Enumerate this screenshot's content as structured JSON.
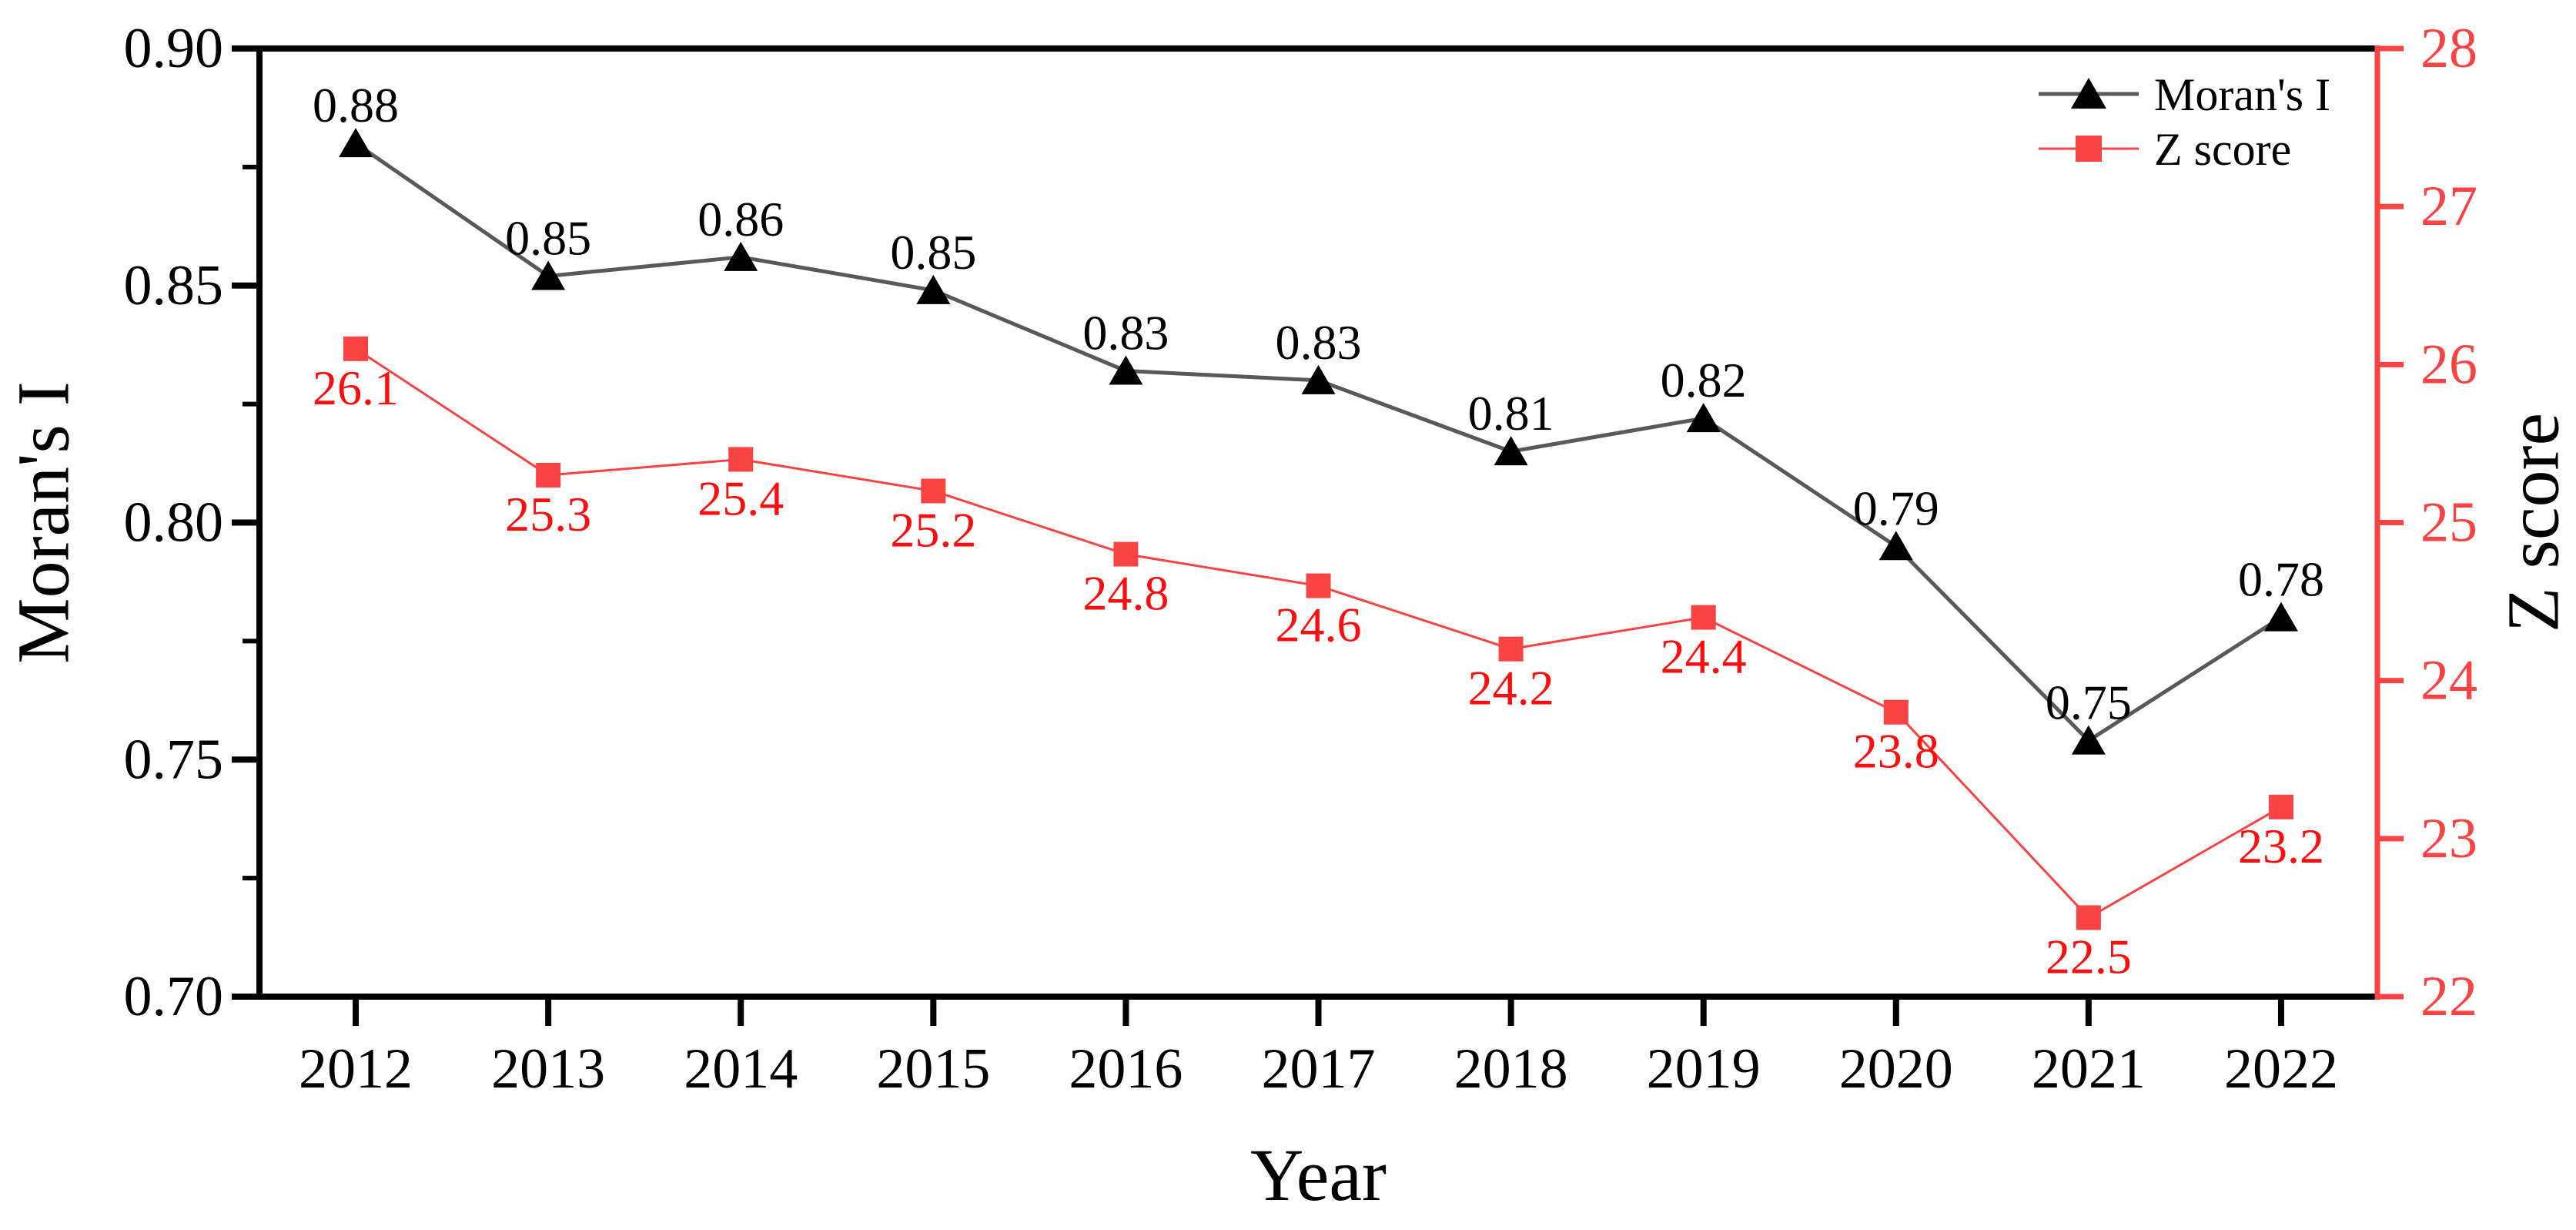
{
  "figure": {
    "background": "#ffffff"
  },
  "chart_data": {
    "type": "line",
    "title": "",
    "categories": [
      "2012",
      "2013",
      "2014",
      "2015",
      "2016",
      "2017",
      "2018",
      "2019",
      "2020",
      "2021",
      "2022"
    ],
    "series": [
      {
        "name": "Moran's I",
        "axis": "left",
        "marker": "triangle",
        "line_color": "#595959",
        "marker_color": "#000000",
        "label_color": "#000000",
        "values": [
          0.88,
          0.852,
          0.856,
          0.849,
          0.832,
          0.83,
          0.815,
          0.822,
          0.795,
          0.754,
          0.78
        ],
        "point_labels": [
          "0.88",
          "0.85",
          "0.86",
          "0.85",
          "0.83",
          "0.83",
          "0.81",
          "0.82",
          "0.79",
          "0.75",
          "0.78"
        ]
      },
      {
        "name": "Z score",
        "axis": "right",
        "marker": "square",
        "line_color": "#f94443",
        "marker_color": "#f94443",
        "label_color": "#fd0d0d",
        "values": [
          26.1,
          25.3,
          25.4,
          25.2,
          24.8,
          24.6,
          24.2,
          24.4,
          23.8,
          22.5,
          23.2
        ],
        "point_labels": [
          "26.1",
          "25.3",
          "25.4",
          "25.2",
          "24.8",
          "24.6",
          "24.2",
          "24.4",
          "23.8",
          "22.5",
          "23.2"
        ]
      }
    ],
    "x_axis": {
      "title": "Year",
      "color": "#000000",
      "tick_labels": [
        "2012",
        "2013",
        "2014",
        "2015",
        "2016",
        "2017",
        "2018",
        "2019",
        "2020",
        "2021",
        "2022"
      ]
    },
    "left_axis": {
      "title": "Moran's I",
      "min": 0.7,
      "max": 0.9,
      "tick_labels": [
        "0.90",
        "0.85",
        "0.80",
        "0.75",
        "0.70"
      ],
      "minor_ticks": [
        0.875,
        0.825,
        0.775,
        0.725
      ],
      "color": "#000000"
    },
    "right_axis": {
      "title": "Z score",
      "min": 22,
      "max": 28,
      "tick_labels": [
        "28",
        "27",
        "26",
        "25",
        "24",
        "23",
        "22"
      ],
      "minor_ticks": [],
      "color": "#f94443",
      "title_color": "#000000"
    },
    "legend": {
      "position": "top-right",
      "items": [
        {
          "label": "Moran's I",
          "marker": "triangle",
          "line_color": "#595959",
          "marker_color": "#000000"
        },
        {
          "label": "Z score",
          "marker": "square",
          "line_color": "#f94443",
          "marker_color": "#f94443"
        }
      ]
    },
    "grid": false
  }
}
